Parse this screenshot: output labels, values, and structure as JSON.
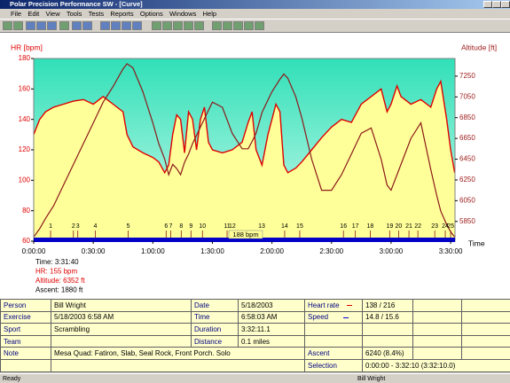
{
  "window": {
    "title": "Polar Precision Performance SW - [Curve]",
    "menu": [
      "File",
      "Edit",
      "View",
      "Tools",
      "Tests",
      "Reports",
      "Options",
      "Windows",
      "Help"
    ]
  },
  "chart_data": {
    "type": "line",
    "y_label": "HR [bpm]",
    "y2_label": "Altitude [ft]",
    "x_label": "Time",
    "annotation": "188 bpm",
    "x": [
      0,
      3,
      6,
      10,
      15,
      20,
      25,
      30,
      35,
      40,
      45,
      47,
      50,
      55,
      60,
      63,
      66,
      68,
      70,
      72,
      74,
      76,
      78,
      80,
      82,
      84,
      86,
      88,
      90,
      95,
      100,
      105,
      108,
      110,
      112,
      115,
      118,
      120,
      122,
      124,
      126,
      128,
      132,
      135,
      140,
      145,
      150,
      155,
      160,
      165,
      170,
      175,
      178,
      180,
      183,
      185,
      190,
      195,
      200,
      203,
      205,
      208,
      210,
      212
    ],
    "xlim": [
      0,
      212.2
    ],
    "xticks": [
      {
        "value": 0,
        "label": "0:00:00"
      },
      {
        "value": 30,
        "label": "0:30:00"
      },
      {
        "value": 60,
        "label": "1:00:00"
      },
      {
        "value": 90,
        "label": "1:30:00"
      },
      {
        "value": 120,
        "label": "2:00:00"
      },
      {
        "value": 150,
        "label": "2:30:00"
      },
      {
        "value": 180,
        "label": "3:00:00"
      },
      {
        "value": 210,
        "label": "3:30:00"
      }
    ],
    "ylim": [
      60,
      180
    ],
    "yticks": [
      60,
      80,
      100,
      120,
      140,
      160,
      180
    ],
    "y2lim": [
      5660,
      7420
    ],
    "y2ticks": [
      5850,
      6050,
      6250,
      6450,
      6650,
      6850,
      7050,
      7250
    ],
    "series": [
      {
        "color": "#e00000",
        "values": [
          130,
          140,
          145,
          148,
          150,
          152,
          153,
          150,
          155,
          150,
          145,
          130,
          122,
          118,
          115,
          112,
          105,
          110,
          130,
          143,
          140,
          118,
          145,
          140,
          120,
          140,
          148,
          125,
          120,
          118,
          120,
          125,
          138,
          145,
          120,
          110,
          130,
          140,
          150,
          145,
          110,
          105,
          108,
          112,
          120,
          128,
          135,
          140,
          138,
          150,
          155,
          160,
          145,
          150,
          162,
          155,
          150,
          153,
          148,
          160,
          165,
          140,
          120,
          105
        ]
      },
      {
        "color": "#8b1a1a",
        "axis": "y2",
        "values": [
          5700,
          5780,
          5880,
          6000,
          6200,
          6400,
          6600,
          6800,
          7000,
          7150,
          7320,
          7370,
          7330,
          7100,
          6800,
          6600,
          6450,
          6300,
          6400,
          6360,
          6300,
          6420,
          6500,
          6600,
          6680,
          6760,
          6840,
          6920,
          7000,
          6950,
          6700,
          6550,
          6550,
          6620,
          6700,
          6900,
          7020,
          7100,
          7160,
          7220,
          7270,
          7230,
          7050,
          6850,
          6450,
          6150,
          6150,
          6300,
          6500,
          6700,
          6750,
          6450,
          6200,
          6150,
          6300,
          6400,
          6650,
          6800,
          6350,
          6100,
          5950,
          5820,
          5750,
          5700
        ]
      }
    ],
    "laps": {
      "x": [
        8.5,
        20,
        22.2,
        31,
        47.6,
        66.7,
        69,
        74.3,
        79.2,
        85,
        97.4,
        100,
        114.8,
        126.4,
        134,
        156,
        162,
        169.5,
        179.3,
        183.8,
        189,
        193.5,
        202,
        207.3,
        210
      ],
      "labels": [
        "1",
        "2",
        "3",
        "4",
        "5",
        "6",
        "7",
        "8",
        "9",
        "10",
        "11",
        "12",
        "13",
        "14",
        "15",
        "16",
        "17",
        "18",
        "19",
        "20",
        "21",
        "22",
        "23",
        "24",
        "25"
      ]
    }
  },
  "cursor": [
    "Time: 3:31:40",
    "HR: 155 bpm",
    "Altitude: 6352 ft",
    "Ascent: 1880 ft"
  ],
  "info": {
    "rows": [
      [
        "Person",
        "Bill Wright",
        "Date",
        "5/18/2003",
        "Heart rate",
        "138 / 216"
      ],
      [
        "Exercise",
        "5/18/2003 6:58 AM",
        "Time",
        "6:58:03 AM",
        "Speed",
        "14.8 / 15.6"
      ],
      [
        "Sport",
        "Scrambling",
        "Duration",
        "3:32:11.1"
      ],
      [
        "Team",
        "Distance",
        "0.1 miles"
      ],
      [
        "Note",
        "Mesa Quad: Fatiron, Slab, Seal Rock, Front Porch. Solo",
        "Ascent",
        "6240 (8.4%)"
      ],
      [
        "Selection",
        "0:00:00 - 3:32:10 (3:32:10.0)"
      ]
    ]
  },
  "status": [
    "Ready",
    "Bill Wright"
  ]
}
